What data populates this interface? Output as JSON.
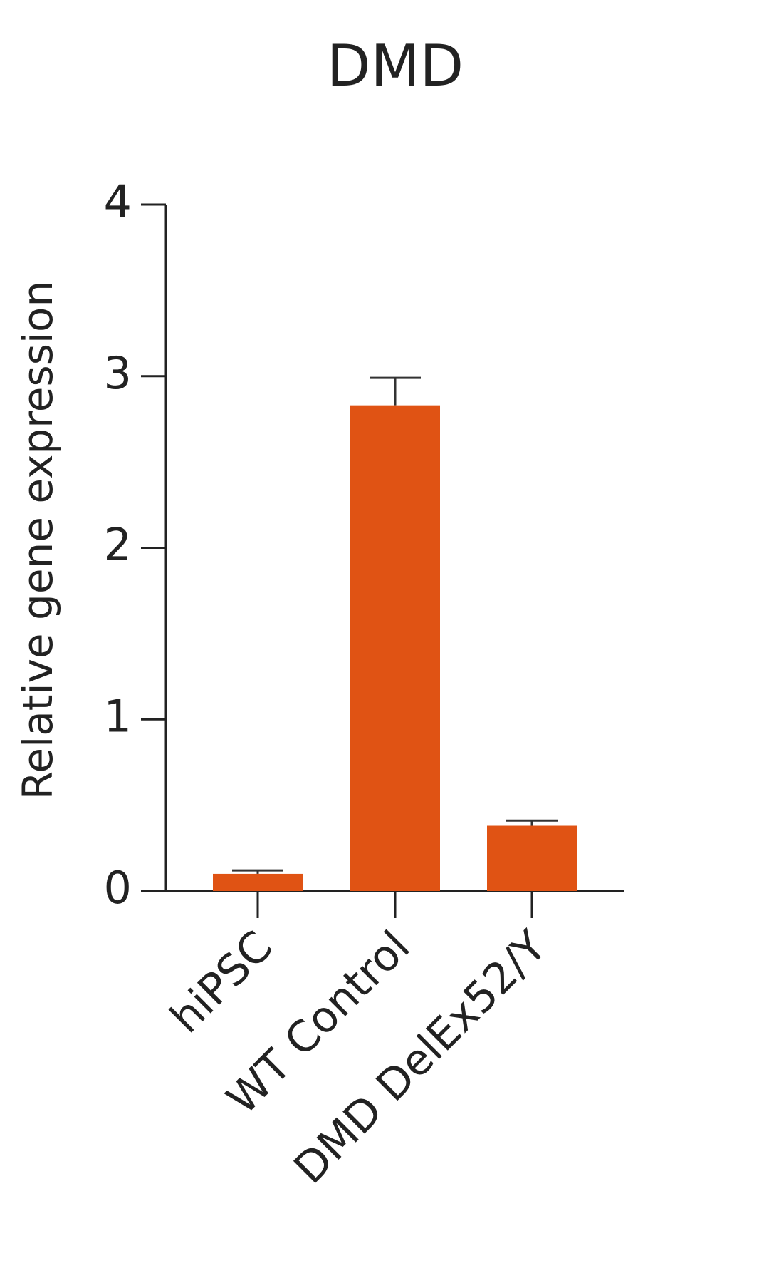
{
  "chart_data": {
    "type": "bar",
    "title": "DMD",
    "y_label": "Relative gene expression",
    "categories": [
      "hiPSC",
      "WT Control",
      "DMD DelEx52/Y"
    ],
    "values": [
      0.1,
      2.83,
      0.38
    ],
    "errors": [
      0.02,
      0.16,
      0.03
    ],
    "color": "#e05314",
    "ylim": [
      0,
      4
    ],
    "yticks": [
      0,
      1,
      2,
      3,
      4
    ],
    "grid": false
  }
}
